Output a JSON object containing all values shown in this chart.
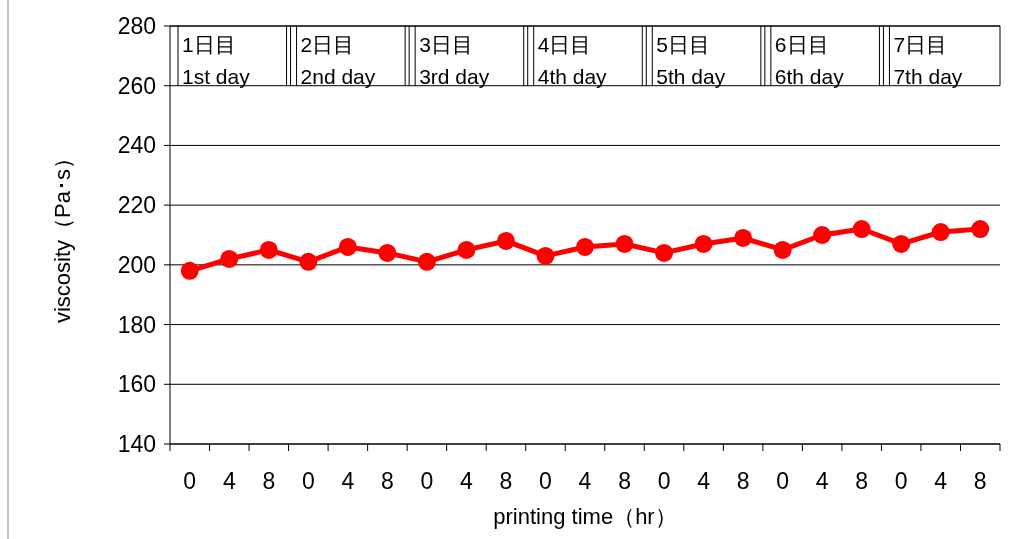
{
  "chart_data": {
    "type": "line",
    "xlabel": "printing time（hr）",
    "ylabel": "viscosity（Pa･s）",
    "categories": [
      "0",
      "4",
      "8",
      "0",
      "4",
      "8",
      "0",
      "4",
      "8",
      "0",
      "4",
      "8",
      "0",
      "4",
      "8",
      "0",
      "4",
      "8",
      "0",
      "4",
      "8"
    ],
    "series": [
      {
        "color": "#ff0000",
        "values": [
          198,
          202,
          205,
          201,
          206,
          204,
          201,
          205,
          208,
          203,
          206,
          207,
          204,
          207,
          209,
          205,
          210,
          212,
          207,
          211,
          212
        ]
      }
    ],
    "ylim": [
      140,
      280
    ],
    "yticks": [
      140,
      160,
      180,
      200,
      220,
      240,
      260,
      280
    ],
    "grid": "y",
    "marker": "circle",
    "line_style": "solid",
    "annotations": [
      "1日目\n1st day",
      "2日目\n2nd day",
      "3日目\n3rd day",
      "4日目\n4th day",
      "5日目\n5th day",
      "6日目\n6th day",
      "7日目\n7th day"
    ]
  }
}
